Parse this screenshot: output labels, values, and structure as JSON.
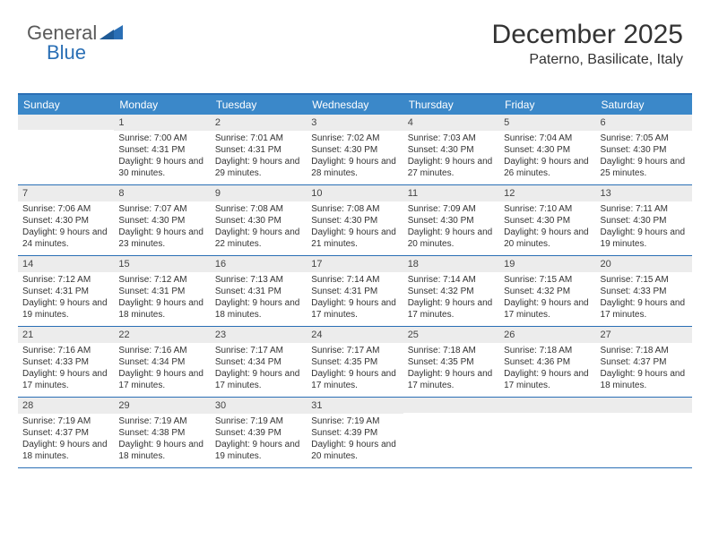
{
  "logo": {
    "part1": "General",
    "part2": "Blue"
  },
  "title": "December 2025",
  "location": "Paterno, Basilicate, Italy",
  "colors": {
    "header_bg": "#3b88c9",
    "border": "#2a6fb5",
    "daynum_bg": "#ececec",
    "text": "#333333",
    "logo_gray": "#5a5a5a",
    "logo_blue": "#2a6fb5"
  },
  "dayNames": [
    "Sunday",
    "Monday",
    "Tuesday",
    "Wednesday",
    "Thursday",
    "Friday",
    "Saturday"
  ],
  "weeks": [
    [
      {
        "n": "",
        "sr": "",
        "ss": "",
        "dl": ""
      },
      {
        "n": "1",
        "sr": "Sunrise: 7:00 AM",
        "ss": "Sunset: 4:31 PM",
        "dl": "Daylight: 9 hours and 30 minutes."
      },
      {
        "n": "2",
        "sr": "Sunrise: 7:01 AM",
        "ss": "Sunset: 4:31 PM",
        "dl": "Daylight: 9 hours and 29 minutes."
      },
      {
        "n": "3",
        "sr": "Sunrise: 7:02 AM",
        "ss": "Sunset: 4:30 PM",
        "dl": "Daylight: 9 hours and 28 minutes."
      },
      {
        "n": "4",
        "sr": "Sunrise: 7:03 AM",
        "ss": "Sunset: 4:30 PM",
        "dl": "Daylight: 9 hours and 27 minutes."
      },
      {
        "n": "5",
        "sr": "Sunrise: 7:04 AM",
        "ss": "Sunset: 4:30 PM",
        "dl": "Daylight: 9 hours and 26 minutes."
      },
      {
        "n": "6",
        "sr": "Sunrise: 7:05 AM",
        "ss": "Sunset: 4:30 PM",
        "dl": "Daylight: 9 hours and 25 minutes."
      }
    ],
    [
      {
        "n": "7",
        "sr": "Sunrise: 7:06 AM",
        "ss": "Sunset: 4:30 PM",
        "dl": "Daylight: 9 hours and 24 minutes."
      },
      {
        "n": "8",
        "sr": "Sunrise: 7:07 AM",
        "ss": "Sunset: 4:30 PM",
        "dl": "Daylight: 9 hours and 23 minutes."
      },
      {
        "n": "9",
        "sr": "Sunrise: 7:08 AM",
        "ss": "Sunset: 4:30 PM",
        "dl": "Daylight: 9 hours and 22 minutes."
      },
      {
        "n": "10",
        "sr": "Sunrise: 7:08 AM",
        "ss": "Sunset: 4:30 PM",
        "dl": "Daylight: 9 hours and 21 minutes."
      },
      {
        "n": "11",
        "sr": "Sunrise: 7:09 AM",
        "ss": "Sunset: 4:30 PM",
        "dl": "Daylight: 9 hours and 20 minutes."
      },
      {
        "n": "12",
        "sr": "Sunrise: 7:10 AM",
        "ss": "Sunset: 4:30 PM",
        "dl": "Daylight: 9 hours and 20 minutes."
      },
      {
        "n": "13",
        "sr": "Sunrise: 7:11 AM",
        "ss": "Sunset: 4:30 PM",
        "dl": "Daylight: 9 hours and 19 minutes."
      }
    ],
    [
      {
        "n": "14",
        "sr": "Sunrise: 7:12 AM",
        "ss": "Sunset: 4:31 PM",
        "dl": "Daylight: 9 hours and 19 minutes."
      },
      {
        "n": "15",
        "sr": "Sunrise: 7:12 AM",
        "ss": "Sunset: 4:31 PM",
        "dl": "Daylight: 9 hours and 18 minutes."
      },
      {
        "n": "16",
        "sr": "Sunrise: 7:13 AM",
        "ss": "Sunset: 4:31 PM",
        "dl": "Daylight: 9 hours and 18 minutes."
      },
      {
        "n": "17",
        "sr": "Sunrise: 7:14 AM",
        "ss": "Sunset: 4:31 PM",
        "dl": "Daylight: 9 hours and 17 minutes."
      },
      {
        "n": "18",
        "sr": "Sunrise: 7:14 AM",
        "ss": "Sunset: 4:32 PM",
        "dl": "Daylight: 9 hours and 17 minutes."
      },
      {
        "n": "19",
        "sr": "Sunrise: 7:15 AM",
        "ss": "Sunset: 4:32 PM",
        "dl": "Daylight: 9 hours and 17 minutes."
      },
      {
        "n": "20",
        "sr": "Sunrise: 7:15 AM",
        "ss": "Sunset: 4:33 PM",
        "dl": "Daylight: 9 hours and 17 minutes."
      }
    ],
    [
      {
        "n": "21",
        "sr": "Sunrise: 7:16 AM",
        "ss": "Sunset: 4:33 PM",
        "dl": "Daylight: 9 hours and 17 minutes."
      },
      {
        "n": "22",
        "sr": "Sunrise: 7:16 AM",
        "ss": "Sunset: 4:34 PM",
        "dl": "Daylight: 9 hours and 17 minutes."
      },
      {
        "n": "23",
        "sr": "Sunrise: 7:17 AM",
        "ss": "Sunset: 4:34 PM",
        "dl": "Daylight: 9 hours and 17 minutes."
      },
      {
        "n": "24",
        "sr": "Sunrise: 7:17 AM",
        "ss": "Sunset: 4:35 PM",
        "dl": "Daylight: 9 hours and 17 minutes."
      },
      {
        "n": "25",
        "sr": "Sunrise: 7:18 AM",
        "ss": "Sunset: 4:35 PM",
        "dl": "Daylight: 9 hours and 17 minutes."
      },
      {
        "n": "26",
        "sr": "Sunrise: 7:18 AM",
        "ss": "Sunset: 4:36 PM",
        "dl": "Daylight: 9 hours and 17 minutes."
      },
      {
        "n": "27",
        "sr": "Sunrise: 7:18 AM",
        "ss": "Sunset: 4:37 PM",
        "dl": "Daylight: 9 hours and 18 minutes."
      }
    ],
    [
      {
        "n": "28",
        "sr": "Sunrise: 7:19 AM",
        "ss": "Sunset: 4:37 PM",
        "dl": "Daylight: 9 hours and 18 minutes."
      },
      {
        "n": "29",
        "sr": "Sunrise: 7:19 AM",
        "ss": "Sunset: 4:38 PM",
        "dl": "Daylight: 9 hours and 18 minutes."
      },
      {
        "n": "30",
        "sr": "Sunrise: 7:19 AM",
        "ss": "Sunset: 4:39 PM",
        "dl": "Daylight: 9 hours and 19 minutes."
      },
      {
        "n": "31",
        "sr": "Sunrise: 7:19 AM",
        "ss": "Sunset: 4:39 PM",
        "dl": "Daylight: 9 hours and 20 minutes."
      },
      {
        "n": "",
        "sr": "",
        "ss": "",
        "dl": ""
      },
      {
        "n": "",
        "sr": "",
        "ss": "",
        "dl": ""
      },
      {
        "n": "",
        "sr": "",
        "ss": "",
        "dl": ""
      }
    ]
  ]
}
